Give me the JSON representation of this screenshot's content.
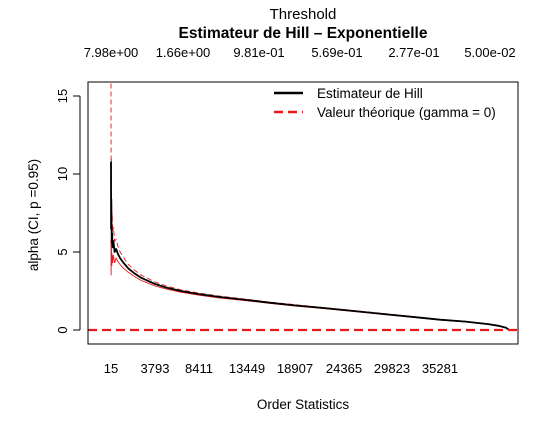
{
  "chart_data": {
    "type": "line",
    "title": "Estimateur de Hill – Exponentielle",
    "xlabel": "Order Statistics",
    "ylabel": "alpha (CI, p =0.95)",
    "top_axis_label": "Threshold",
    "top_tick_labels": [
      "7.98e+00",
      "1.66e+00",
      "9.81e-01",
      "5.69e-01",
      "2.77e-01",
      "5.00e-02"
    ],
    "x_tick_labels": [
      "15",
      "3793",
      "8411",
      "13449",
      "18907",
      "24365",
      "29823",
      "35281"
    ],
    "x_ticks": [
      15,
      3793,
      8411,
      13449,
      18907,
      24365,
      29823,
      35281
    ],
    "xlim": [
      15,
      39900
    ],
    "y_ticks": [
      0,
      5,
      10,
      15
    ],
    "ylim": [
      -0.6,
      15.8
    ],
    "grid": false,
    "legend_position": "top-right",
    "series": [
      {
        "name": "Estimateur de Hill",
        "color": "#000000",
        "style": "solid",
        "points": [
          [
            15,
            10.8
          ],
          [
            25,
            6.5
          ],
          [
            40,
            8.4
          ],
          [
            60,
            6.8
          ],
          [
            80,
            5.6
          ],
          [
            110,
            6.2
          ],
          [
            150,
            5.3
          ],
          [
            220,
            5.7
          ],
          [
            320,
            5.0
          ],
          [
            450,
            5.2
          ],
          [
            600,
            4.9
          ],
          [
            800,
            4.6
          ],
          [
            1100,
            4.3
          ],
          [
            1500,
            3.95
          ],
          [
            2000,
            3.65
          ],
          [
            2600,
            3.35
          ],
          [
            3200,
            3.15
          ],
          [
            3793,
            2.95
          ],
          [
            5000,
            2.72
          ],
          [
            6500,
            2.5
          ],
          [
            8411,
            2.3
          ],
          [
            10500,
            2.12
          ],
          [
            13449,
            1.92
          ],
          [
            16000,
            1.75
          ],
          [
            18907,
            1.58
          ],
          [
            21500,
            1.44
          ],
          [
            24365,
            1.28
          ],
          [
            27000,
            1.13
          ],
          [
            29823,
            0.97
          ],
          [
            32500,
            0.82
          ],
          [
            35281,
            0.66
          ],
          [
            37000,
            0.54
          ],
          [
            38500,
            0.38
          ],
          [
            39200,
            0.27
          ],
          [
            39700,
            0.15
          ],
          [
            39900,
            0.02
          ]
        ]
      },
      {
        "name": "Valeur théorique (gamma = 0)",
        "color": "#e41a1c",
        "style": "dashed",
        "points": [
          [
            15,
            0
          ],
          [
            39900,
            0
          ]
        ]
      }
    ],
    "confidence_band": {
      "color": "#e41a1c",
      "upper": [
        [
          15,
          15.8
        ],
        [
          25,
          9.5
        ],
        [
          40,
          11.0
        ],
        [
          60,
          8.6
        ],
        [
          80,
          7.1
        ],
        [
          110,
          7.5
        ],
        [
          150,
          6.3
        ],
        [
          220,
          6.6
        ],
        [
          320,
          5.7
        ],
        [
          450,
          5.8
        ],
        [
          600,
          5.4
        ],
        [
          800,
          5.0
        ],
        [
          1100,
          4.65
        ],
        [
          1500,
          4.2
        ],
        [
          2000,
          3.86
        ],
        [
          2600,
          3.52
        ],
        [
          3200,
          3.3
        ],
        [
          3793,
          3.08
        ],
        [
          5000,
          2.82
        ],
        [
          6500,
          2.58
        ],
        [
          8411,
          2.37
        ],
        [
          10500,
          2.18
        ],
        [
          13449,
          1.97
        ],
        [
          16000,
          1.79
        ],
        [
          18907,
          1.62
        ],
        [
          21500,
          1.47
        ],
        [
          24365,
          1.31
        ],
        [
          27000,
          1.16
        ],
        [
          29823,
          1.0
        ],
        [
          32500,
          0.84
        ],
        [
          35281,
          0.68
        ],
        [
          37000,
          0.56
        ],
        [
          38500,
          0.4
        ],
        [
          39200,
          0.29
        ],
        [
          39700,
          0.16
        ],
        [
          39900,
          0.03
        ]
      ],
      "lower": [
        [
          15,
          5.8
        ],
        [
          25,
          3.5
        ],
        [
          40,
          5.8
        ],
        [
          60,
          5.0
        ],
        [
          80,
          4.1
        ],
        [
          110,
          4.9
        ],
        [
          150,
          4.3
        ],
        [
          220,
          4.8
        ],
        [
          320,
          4.3
        ],
        [
          450,
          4.6
        ],
        [
          600,
          4.4
        ],
        [
          800,
          4.2
        ],
        [
          1100,
          3.95
        ],
        [
          1500,
          3.7
        ],
        [
          2000,
          3.44
        ],
        [
          2600,
          3.18
        ],
        [
          3200,
          3.0
        ],
        [
          3793,
          2.82
        ],
        [
          5000,
          2.62
        ],
        [
          6500,
          2.42
        ],
        [
          8411,
          2.23
        ],
        [
          10500,
          2.06
        ],
        [
          13449,
          1.87
        ],
        [
          16000,
          1.71
        ],
        [
          18907,
          1.54
        ],
        [
          21500,
          1.41
        ],
        [
          24365,
          1.25
        ],
        [
          27000,
          1.1
        ],
        [
          29823,
          0.94
        ],
        [
          32500,
          0.8
        ],
        [
          35281,
          0.64
        ],
        [
          37000,
          0.52
        ],
        [
          38500,
          0.36
        ],
        [
          39200,
          0.25
        ],
        [
          39700,
          0.14
        ],
        [
          39900,
          0.01
        ]
      ]
    }
  }
}
